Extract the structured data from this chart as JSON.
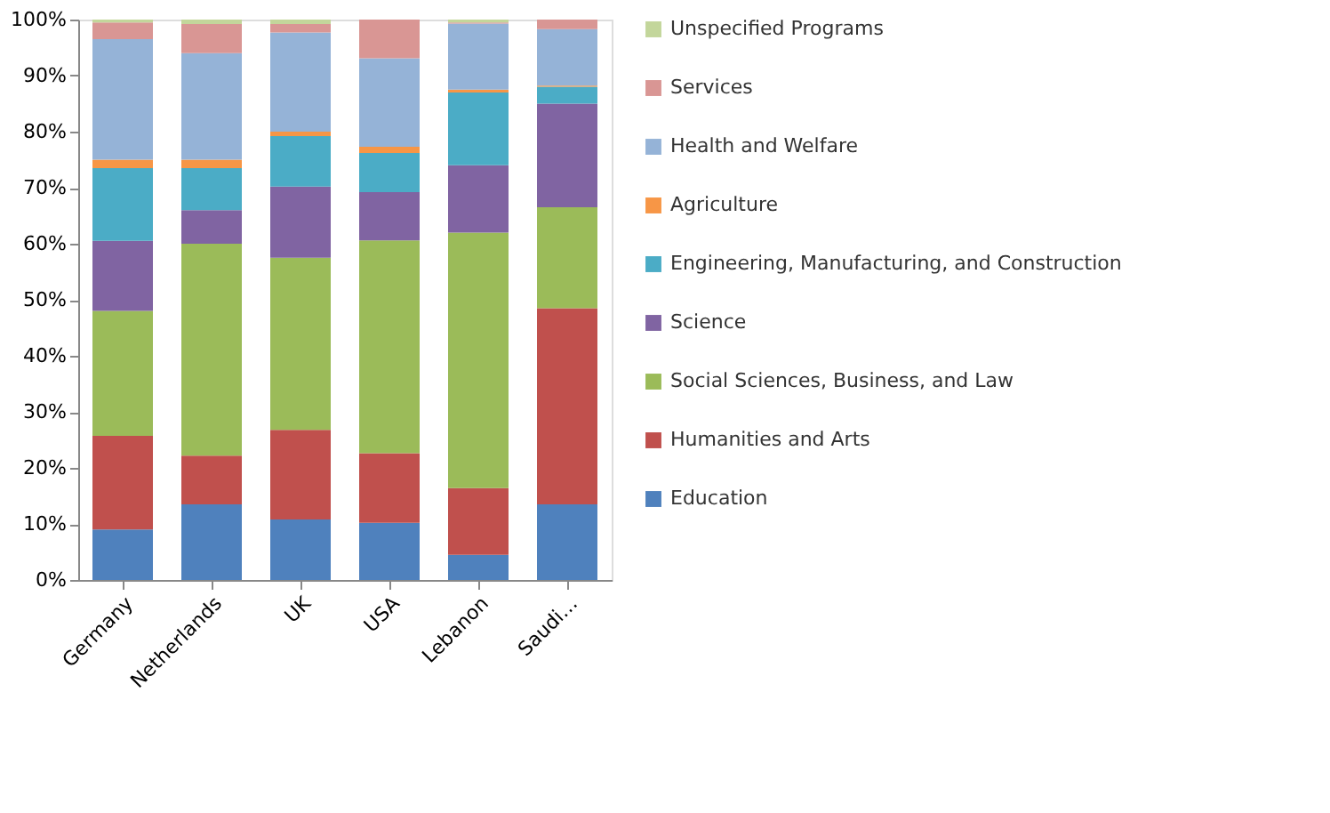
{
  "chart_data": {
    "type": "bar",
    "stacked": true,
    "categories": [
      "Germany",
      "Netherlands",
      "UK",
      "USA",
      "Lebanon",
      "Saudi…"
    ],
    "series": [
      {
        "name": "Education",
        "color": "#4f81bd",
        "values": [
          9,
          13.5,
          10.8,
          10.2,
          4.5,
          13.5
        ]
      },
      {
        "name": "Humanities and Arts",
        "color": "#c0504d",
        "values": [
          16.7,
          8.7,
          16,
          12.4,
          11.9,
          35
        ]
      },
      {
        "name": "Social Sciences, Business, and Law",
        "color": "#9bbb59",
        "values": [
          22.3,
          37.8,
          30.7,
          38,
          45.6,
          18
        ]
      },
      {
        "name": "Science",
        "color": "#8064a2",
        "values": [
          12.5,
          6,
          12.7,
          8.6,
          12,
          18.5
        ]
      },
      {
        "name": "Engineering, Manufacturing,  and Construction",
        "color": "#4bacc6",
        "values": [
          13,
          7.5,
          9,
          7,
          13,
          3
        ]
      },
      {
        "name": "Agriculture",
        "color": "#f79646",
        "values": [
          1.5,
          1.5,
          0.8,
          1.1,
          0.5,
          0.2
        ]
      },
      {
        "name": "Health and Welfare",
        "color": "#95b3d7",
        "values": [
          21.5,
          19,
          17.7,
          15.8,
          11.8,
          10.1
        ]
      },
      {
        "name": "Services",
        "color": "#d99694",
        "values": [
          3,
          5.2,
          1.5,
          6.9,
          0.2,
          1.7
        ]
      },
      {
        "name": "Unspecified Programs",
        "color": "#c3d69b",
        "values": [
          0.5,
          0.8,
          0.8,
          null,
          0.5,
          null
        ]
      }
    ],
    "ylim": [
      0,
      100
    ],
    "yticks": [
      {
        "value": 0,
        "label": "0%"
      },
      {
        "value": 10,
        "label": "10%"
      },
      {
        "value": 20,
        "label": "20%"
      },
      {
        "value": 30,
        "label": "30%"
      },
      {
        "value": 40,
        "label": "40%"
      },
      {
        "value": 50,
        "label": "50%"
      },
      {
        "value": 60,
        "label": "60%"
      },
      {
        "value": 70,
        "label": "70%"
      },
      {
        "value": 80,
        "label": "80%"
      },
      {
        "value": 90,
        "label": "90%"
      },
      {
        "value": 100,
        "label": "100%"
      }
    ],
    "grid": false,
    "legend": "right"
  }
}
